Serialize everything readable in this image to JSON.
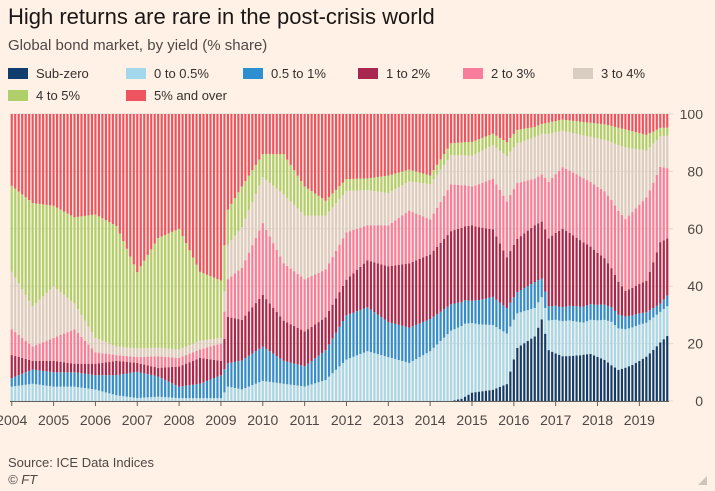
{
  "title": "High returns are rare in the post-crisis world",
  "subtitle": "Global bond market, by yield (% share)",
  "source": "Source: ICE Data Indices",
  "credit": "© FT",
  "chart_data": {
    "type": "bar",
    "stacked": true,
    "title": "High returns are rare in the post-crisis world",
    "subtitle": "Global bond market, by yield (% share)",
    "xlabel": "",
    "ylabel": "",
    "ylim": [
      0,
      100
    ],
    "yticks": [
      0,
      20,
      40,
      60,
      80,
      100
    ],
    "y_axis_side": "right",
    "grid": true,
    "legend_position": "top",
    "year_labels": [
      "2004",
      "2005",
      "2006",
      "2007",
      "2008",
      "2009",
      "2010",
      "2011",
      "2012",
      "2013",
      "2014",
      "2015",
      "2016",
      "2017",
      "2018",
      "2019"
    ],
    "points_per_year": 12,
    "x_start": "2004-01",
    "x_end": "2019-09",
    "series": [
      {
        "name": "Sub-zero",
        "color": "#0F3D6E",
        "keys": [
          [
            0,
            0
          ],
          [
            126,
            0
          ],
          [
            129,
            0.8
          ],
          [
            132,
            3
          ],
          [
            138,
            4
          ],
          [
            142,
            6
          ],
          [
            145,
            20
          ],
          [
            150,
            25
          ],
          [
            152,
            33
          ],
          [
            154,
            18
          ],
          [
            158,
            16
          ],
          [
            163,
            17
          ],
          [
            166,
            18
          ],
          [
            170,
            16
          ],
          [
            174,
            12
          ],
          [
            178,
            14
          ],
          [
            182,
            17
          ],
          [
            186,
            21
          ],
          [
            188,
            24
          ]
        ]
      },
      {
        "name": "0 to 0.5%",
        "color": "#A3D8EC",
        "keys": [
          [
            0,
            5
          ],
          [
            6,
            6
          ],
          [
            12,
            5
          ],
          [
            18,
            5
          ],
          [
            24,
            4
          ],
          [
            30,
            2
          ],
          [
            36,
            1
          ],
          [
            42,
            1.5
          ],
          [
            48,
            1
          ],
          [
            54,
            1
          ],
          [
            60,
            1
          ],
          [
            62,
            5
          ],
          [
            66,
            4
          ],
          [
            72,
            7
          ],
          [
            78,
            6
          ],
          [
            84,
            5
          ],
          [
            90,
            7
          ],
          [
            96,
            14
          ],
          [
            102,
            17
          ],
          [
            108,
            15
          ],
          [
            114,
            13
          ],
          [
            120,
            17
          ],
          [
            126,
            24
          ],
          [
            130,
            26
          ],
          [
            134,
            24
          ],
          [
            138,
            23
          ],
          [
            142,
            18
          ],
          [
            145,
            13
          ],
          [
            150,
            11
          ],
          [
            152,
            9
          ],
          [
            156,
            12
          ],
          [
            160,
            13
          ],
          [
            164,
            12
          ],
          [
            168,
            14
          ],
          [
            172,
            17
          ],
          [
            176,
            15
          ],
          [
            180,
            14
          ],
          [
            186,
            11
          ],
          [
            188,
            11
          ]
        ]
      },
      {
        "name": "0.5 to 1%",
        "color": "#2E8FD0",
        "keys": [
          [
            0,
            3
          ],
          [
            6,
            5
          ],
          [
            12,
            5
          ],
          [
            18,
            5
          ],
          [
            24,
            5
          ],
          [
            30,
            7
          ],
          [
            36,
            9
          ],
          [
            42,
            7
          ],
          [
            48,
            4
          ],
          [
            54,
            5
          ],
          [
            60,
            8
          ],
          [
            62,
            8
          ],
          [
            66,
            10
          ],
          [
            72,
            12
          ],
          [
            78,
            8
          ],
          [
            84,
            7
          ],
          [
            90,
            10
          ],
          [
            96,
            15
          ],
          [
            102,
            15
          ],
          [
            108,
            12
          ],
          [
            114,
            12
          ],
          [
            120,
            11
          ],
          [
            126,
            9
          ],
          [
            132,
            8
          ],
          [
            138,
            10
          ],
          [
            142,
            9
          ],
          [
            145,
            8
          ],
          [
            150,
            10
          ],
          [
            154,
            5
          ],
          [
            158,
            5
          ],
          [
            164,
            6
          ],
          [
            170,
            6
          ],
          [
            176,
            5
          ],
          [
            182,
            4
          ],
          [
            186,
            3
          ],
          [
            188,
            4
          ]
        ]
      },
      {
        "name": "1 to 2%",
        "color": "#A8264F",
        "keys": [
          [
            0,
            8
          ],
          [
            6,
            3
          ],
          [
            12,
            4
          ],
          [
            18,
            3
          ],
          [
            24,
            4
          ],
          [
            30,
            5
          ],
          [
            36,
            3
          ],
          [
            42,
            3
          ],
          [
            48,
            7
          ],
          [
            54,
            9
          ],
          [
            60,
            5
          ],
          [
            62,
            16
          ],
          [
            66,
            14
          ],
          [
            72,
            18
          ],
          [
            78,
            14
          ],
          [
            84,
            12
          ],
          [
            90,
            11
          ],
          [
            96,
            12
          ],
          [
            102,
            16
          ],
          [
            108,
            19
          ],
          [
            114,
            22
          ],
          [
            120,
            22
          ],
          [
            126,
            25
          ],
          [
            132,
            27
          ],
          [
            138,
            24
          ],
          [
            142,
            18
          ],
          [
            145,
            20
          ],
          [
            150,
            22
          ],
          [
            154,
            24
          ],
          [
            158,
            28
          ],
          [
            164,
            24
          ],
          [
            170,
            18
          ],
          [
            176,
            10
          ],
          [
            182,
            12
          ],
          [
            186,
            22
          ],
          [
            188,
            21
          ]
        ]
      },
      {
        "name": "2 to 3%",
        "color": "#F87C9B",
        "keys": [
          [
            0,
            9
          ],
          [
            6,
            5
          ],
          [
            12,
            8
          ],
          [
            18,
            12
          ],
          [
            24,
            4
          ],
          [
            30,
            2
          ],
          [
            36,
            2
          ],
          [
            42,
            4
          ],
          [
            48,
            3
          ],
          [
            54,
            3
          ],
          [
            60,
            6
          ],
          [
            62,
            13
          ],
          [
            66,
            18
          ],
          [
            72,
            25
          ],
          [
            78,
            20
          ],
          [
            84,
            18
          ],
          [
            90,
            16
          ],
          [
            96,
            16
          ],
          [
            102,
            12
          ],
          [
            108,
            14
          ],
          [
            114,
            18
          ],
          [
            120,
            12
          ],
          [
            126,
            16
          ],
          [
            132,
            14
          ],
          [
            138,
            18
          ],
          [
            142,
            20
          ],
          [
            145,
            21
          ],
          [
            150,
            18
          ],
          [
            154,
            20
          ],
          [
            158,
            22
          ],
          [
            164,
            24
          ],
          [
            170,
            26
          ],
          [
            176,
            28
          ],
          [
            182,
            32
          ],
          [
            186,
            27
          ],
          [
            188,
            26
          ]
        ]
      },
      {
        "name": "3 to 4%",
        "color": "#D9CCC1",
        "keys": [
          [
            0,
            20
          ],
          [
            6,
            14
          ],
          [
            12,
            18
          ],
          [
            18,
            9
          ],
          [
            24,
            5
          ],
          [
            30,
            3
          ],
          [
            36,
            3
          ],
          [
            42,
            3
          ],
          [
            48,
            3
          ],
          [
            54,
            3
          ],
          [
            60,
            2
          ],
          [
            62,
            12
          ],
          [
            66,
            14
          ],
          [
            72,
            16
          ],
          [
            78,
            24
          ],
          [
            84,
            22
          ],
          [
            90,
            18
          ],
          [
            96,
            14
          ],
          [
            102,
            12
          ],
          [
            108,
            11
          ],
          [
            114,
            10
          ],
          [
            120,
            12
          ],
          [
            126,
            10
          ],
          [
            132,
            11
          ],
          [
            138,
            12
          ],
          [
            142,
            16
          ],
          [
            145,
            15
          ],
          [
            150,
            16
          ],
          [
            154,
            17
          ],
          [
            158,
            13
          ],
          [
            164,
            16
          ],
          [
            170,
            20
          ],
          [
            176,
            28
          ],
          [
            182,
            18
          ],
          [
            186,
            11
          ],
          [
            188,
            12
          ]
        ]
      },
      {
        "name": "4 to 5%",
        "color": "#AECF6A",
        "keys": [
          [
            0,
            30
          ],
          [
            6,
            36
          ],
          [
            12,
            28
          ],
          [
            18,
            30
          ],
          [
            24,
            43
          ],
          [
            30,
            42
          ],
          [
            36,
            26
          ],
          [
            42,
            38
          ],
          [
            48,
            42
          ],
          [
            54,
            24
          ],
          [
            60,
            20
          ],
          [
            62,
            12
          ],
          [
            66,
            14
          ],
          [
            72,
            8
          ],
          [
            78,
            14
          ],
          [
            84,
            10
          ],
          [
            90,
            5
          ],
          [
            96,
            4
          ],
          [
            102,
            4
          ],
          [
            108,
            6
          ],
          [
            114,
            4
          ],
          [
            120,
            3
          ],
          [
            126,
            4
          ],
          [
            132,
            5
          ],
          [
            138,
            4
          ],
          [
            142,
            5
          ],
          [
            145,
            5
          ],
          [
            150,
            4
          ],
          [
            154,
            4
          ],
          [
            158,
            4
          ],
          [
            164,
            5
          ],
          [
            170,
            6
          ],
          [
            176,
            7
          ],
          [
            182,
            6
          ],
          [
            186,
            3
          ],
          [
            188,
            3
          ]
        ]
      },
      {
        "name": "5% and over",
        "color": "#EE5460",
        "keys": [
          [
            0,
            25
          ],
          [
            6,
            31
          ],
          [
            12,
            32
          ],
          [
            18,
            36
          ],
          [
            24,
            35
          ],
          [
            30,
            39
          ],
          [
            36,
            54
          ],
          [
            42,
            43
          ],
          [
            48,
            40
          ],
          [
            54,
            55
          ],
          [
            60,
            58
          ],
          [
            62,
            33
          ],
          [
            66,
            25
          ],
          [
            72,
            14
          ],
          [
            78,
            14
          ],
          [
            84,
            25
          ],
          [
            90,
            29
          ],
          [
            96,
            22
          ],
          [
            102,
            22
          ],
          [
            108,
            21
          ],
          [
            114,
            19
          ],
          [
            120,
            21
          ],
          [
            126,
            10
          ],
          [
            132,
            10
          ],
          [
            138,
            7
          ],
          [
            142,
            10
          ],
          [
            145,
            6
          ],
          [
            150,
            5
          ],
          [
            154,
            3
          ],
          [
            158,
            2
          ],
          [
            164,
            3
          ],
          [
            170,
            4
          ],
          [
            176,
            6
          ],
          [
            182,
            8
          ],
          [
            186,
            5
          ],
          [
            188,
            5
          ]
        ]
      }
    ]
  }
}
